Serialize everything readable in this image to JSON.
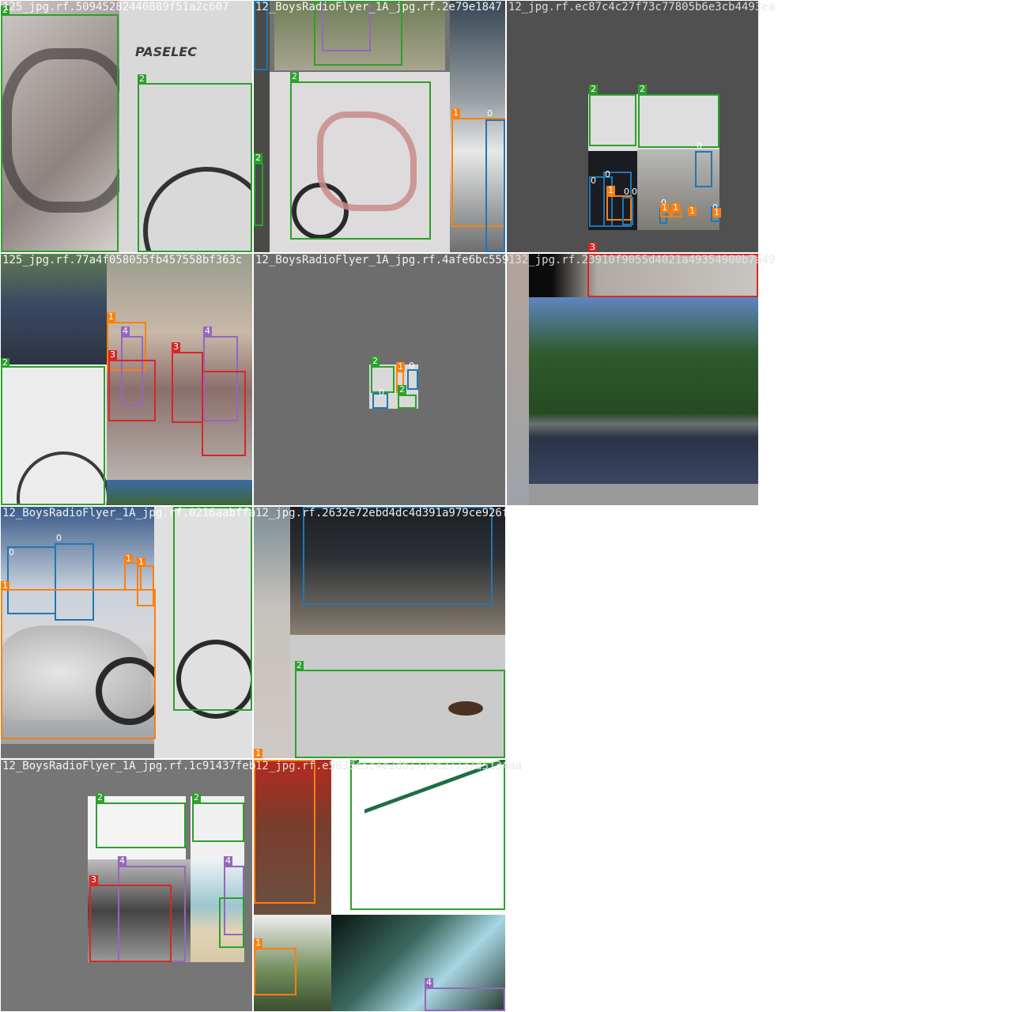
{
  "colors": {
    "class_0": "#1f77b4",
    "class_1": "#ff7f0e",
    "class_2": "#2ca02c",
    "class_3": "#d62728",
    "class_4": "#9467bd",
    "tile_bg": "#727272"
  },
  "filenames": [
    "125_jpg.rf.50945282440889f51a2c607",
    "12_BoysRadioFlyer_1A_jpg.rf.2e79e1847",
    "12_jpg.rf.ec87c4c27f73c77805b6e3cb4493ea",
    "125_jpg.rf.77a4f058055fb457558bf363c",
    "12_BoysRadioFlyer_1A_jpg.rf.4afe6bc559",
    "132_jpg.rf.23910f9055d4021a49354900b7a49",
    "12_BoysRadioFlyer_1A_jpg.rf.0216aabffa",
    "12_jpg.rf.2632e72ebd4dc4d391a979ce926f59",
    "12_BoysRadioFlyer_1A_jpg.rf.1c91437feb",
    "12_jpg.rf.e5833e5c4e2db1776e27737d5134aa"
  ],
  "labels": {
    "c0": "0",
    "c1": "1",
    "c2": "2",
    "c3": "3",
    "c4": "4"
  },
  "logo_text": "PASELEC"
}
